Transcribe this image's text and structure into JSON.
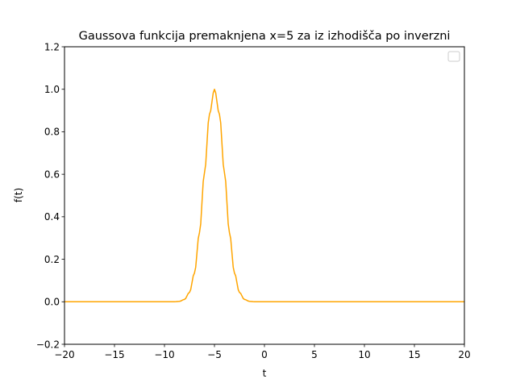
{
  "chart_data": {
    "type": "line",
    "title": "Gaussova funkcija premaknjena x=5 za iz izhodišča po inverzni",
    "xlabel": "t",
    "ylabel": "f(t)",
    "xlim": [
      -20,
      20
    ],
    "ylim": [
      -0.2,
      1.2
    ],
    "x_ticks": [
      -20,
      -15,
      -10,
      -5,
      0,
      5,
      10,
      15,
      20
    ],
    "x_tick_labels": [
      "−20",
      "−15",
      "−10",
      "−5",
      "0",
      "5",
      "10",
      "15",
      "20"
    ],
    "y_ticks": [
      -0.2,
      0.0,
      0.2,
      0.4,
      0.6,
      0.8,
      1.0,
      1.2
    ],
    "y_tick_labels": [
      "−0.2",
      "0.0",
      "0.2",
      "0.4",
      "0.6",
      "0.8",
      "1.0",
      "1.2"
    ],
    "grid": false,
    "legend": {
      "placement": "top-right",
      "entries": []
    },
    "series": [
      {
        "color": "#ffa500",
        "x": [
          -20,
          -15,
          -10,
          -9,
          -8.5,
          -8,
          -7.5,
          -7,
          -6.5,
          -6,
          -5.5,
          -5,
          -4.5,
          -4,
          -3.5,
          -3,
          -2.5,
          -2,
          -1.5,
          -1,
          0,
          5,
          10,
          15,
          20
        ],
        "y": [
          0,
          0,
          0.0001,
          0.0003,
          0.002,
          0.011,
          0.044,
          0.135,
          0.325,
          0.607,
          0.882,
          1.0,
          0.882,
          0.607,
          0.325,
          0.135,
          0.044,
          0.011,
          0.002,
          0.0003,
          0,
          0,
          0,
          0,
          0
        ]
      }
    ]
  }
}
